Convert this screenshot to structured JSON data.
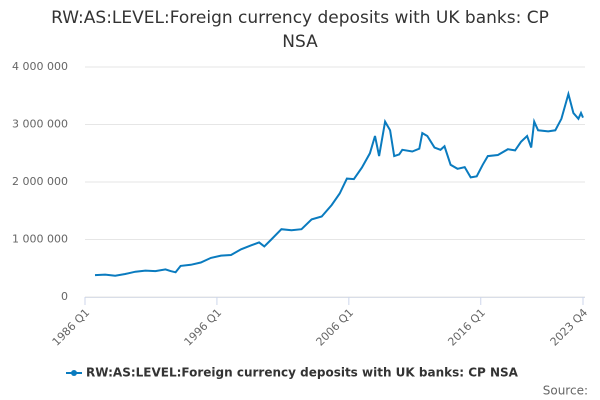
{
  "chart_data": {
    "type": "line",
    "title": "RW:AS:LEVEL:Foreign currency deposits with UK banks: CP NSA",
    "source": "Source:",
    "x": [
      1986.76,
      1987.53,
      1988.29,
      1989.05,
      1989.82,
      1990.58,
      1991.34,
      1992.1,
      1992.49,
      1992.87,
      1993.25,
      1994.02,
      1994.78,
      1995.54,
      1996.31,
      1997.07,
      1997.83,
      1998.6,
      1999.2,
      1999.59,
      2000.12,
      2000.89,
      2001.65,
      2002.41,
      2003.18,
      2003.94,
      2004.7,
      2005.31,
      2005.85,
      2006.38,
      2006.99,
      2007.6,
      2007.98,
      2008.29,
      2008.75,
      2009.13,
      2009.44,
      2009.82,
      2010.05,
      2010.81,
      2011.34,
      2011.57,
      2011.95,
      2012.49,
      2012.95,
      2013.25,
      2013.71,
      2014.24,
      2014.78,
      2015.24,
      2015.69,
      2016.15,
      2016.53,
      2017.3,
      2018.06,
      2018.6,
      2019.05,
      2019.51,
      2019.82,
      2020.05,
      2020.35,
      2021.11,
      2021.65,
      2022.11,
      2022.64,
      2023.02,
      2023.4,
      2023.6,
      2023.75
    ],
    "series": [
      {
        "name": "RW:AS:LEVEL:Foreign currency deposits with UK banks: CP NSA",
        "color": "#0a7bbf",
        "values": [
          380000,
          390000,
          370000,
          400000,
          440000,
          460000,
          450000,
          480000,
          450000,
          430000,
          540000,
          560000,
          600000,
          680000,
          720000,
          730000,
          830000,
          900000,
          950000,
          880000,
          1000000,
          1180000,
          1160000,
          1180000,
          1350000,
          1400000,
          1600000,
          1800000,
          2060000,
          2050000,
          2250000,
          2500000,
          2800000,
          2450000,
          3050000,
          2900000,
          2450000,
          2480000,
          2560000,
          2530000,
          2580000,
          2850000,
          2800000,
          2600000,
          2560000,
          2620000,
          2300000,
          2230000,
          2260000,
          2080000,
          2100000,
          2300000,
          2450000,
          2470000,
          2570000,
          2550000,
          2700000,
          2800000,
          2600000,
          3050000,
          2900000,
          2880000,
          2900000,
          3100000,
          3530000,
          3200000,
          3100000,
          3200000,
          3120000
        ]
      }
    ],
    "xlim": [
      1986,
      2023.75
    ],
    "xticks": [
      {
        "value": 1986,
        "label": "1986 Q1"
      },
      {
        "value": 1996,
        "label": "1996 Q1"
      },
      {
        "value": 2006,
        "label": "2006 Q1"
      },
      {
        "value": 2016,
        "label": "2016 Q1"
      },
      {
        "value": 2023.75,
        "label": "2023 Q4"
      }
    ],
    "ylim": [
      0,
      4000000
    ],
    "yticks": [
      0,
      {
        "value": 1000000,
        "label": "1 000 000"
      },
      {
        "value": 2000000,
        "label": "2 000 000"
      },
      {
        "value": 3000000,
        "label": "3 000 000"
      },
      {
        "value": 4000000,
        "label": "4 000 000"
      }
    ],
    "grid": true
  }
}
